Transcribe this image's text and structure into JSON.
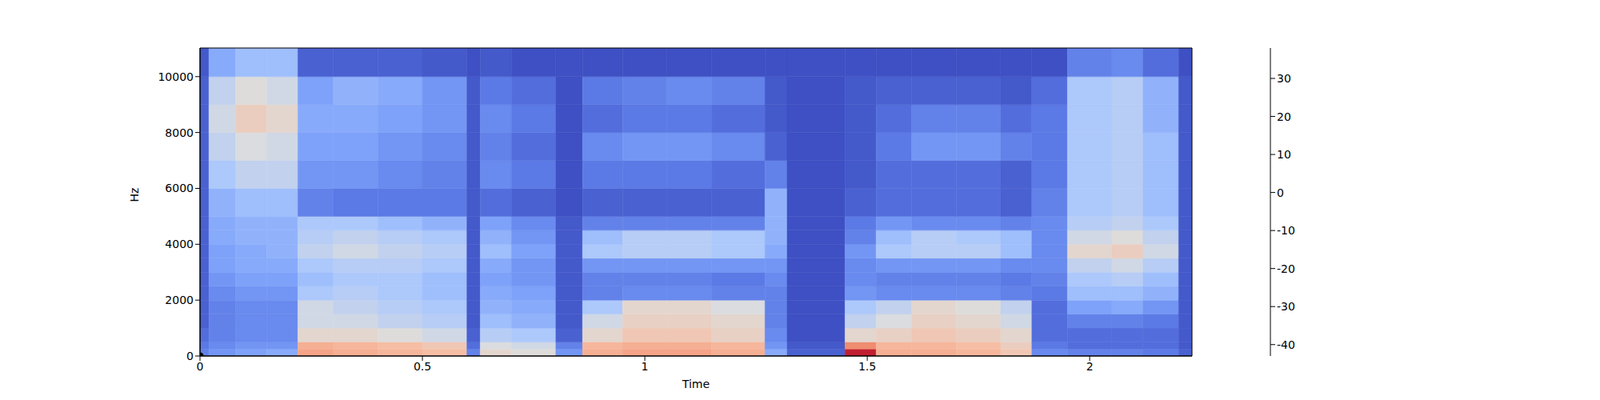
{
  "chart_data": {
    "type": "heatmap",
    "xlabel": "Time",
    "ylabel": "Hz",
    "xlim": [
      0,
      2.23
    ],
    "ylim": [
      0,
      11025
    ],
    "xticks": [
      0,
      0.5,
      1,
      1.5,
      2
    ],
    "yticks": [
      0,
      2000,
      4000,
      6000,
      8000,
      10000
    ],
    "x_edges": [
      0,
      0.02,
      0.08,
      0.15,
      0.22,
      0.3,
      0.4,
      0.5,
      0.6,
      0.63,
      0.7,
      0.8,
      0.86,
      0.95,
      1.05,
      1.15,
      1.27,
      1.32,
      1.45,
      1.52,
      1.6,
      1.7,
      1.8,
      1.87,
      1.95,
      2.05,
      2.12,
      2.2,
      2.23
    ],
    "y_edges": [
      0,
      250,
      500,
      1000,
      1500,
      2000,
      2500,
      3000,
      3500,
      4000,
      4500,
      5000,
      6000,
      7000,
      8000,
      9000,
      10000,
      11025
    ],
    "cells": [
      [
        -30,
        -32,
        -35,
        -38,
        -38,
        -38,
        -38,
        -38,
        -38,
        -38,
        -38,
        -38,
        -38,
        -38,
        -38,
        -38,
        -40
      ],
      [
        -25,
        -28,
        -30,
        -30,
        -30,
        -28,
        -25,
        -22,
        -22,
        -20,
        -20,
        -18,
        -12,
        -8,
        -5,
        -8,
        -20
      ],
      [
        -22,
        -25,
        -28,
        -28,
        -28,
        -25,
        -22,
        -20,
        -20,
        -18,
        -18,
        -15,
        -8,
        -3,
        3,
        -2,
        -15
      ],
      [
        -20,
        -25,
        -28,
        -28,
        -28,
        -25,
        -22,
        -20,
        -18,
        -18,
        -18,
        -15,
        -8,
        -5,
        0,
        -5,
        -15
      ],
      [
        15,
        12,
        0,
        -5,
        -5,
        -12,
        -15,
        -12,
        -8,
        -10,
        -12,
        -30,
        -25,
        -22,
        -20,
        -22,
        -38
      ],
      [
        12,
        10,
        0,
        -5,
        -8,
        -10,
        -12,
        -10,
        -5,
        -8,
        -12,
        -32,
        -25,
        -22,
        -20,
        -18,
        -38
      ],
      [
        10,
        8,
        -2,
        -8,
        -10,
        -12,
        -12,
        -10,
        -8,
        -10,
        -15,
        -32,
        -28,
        -25,
        -22,
        -20,
        -38
      ],
      [
        8,
        5,
        -5,
        -10,
        -12,
        -15,
        -15,
        -12,
        -10,
        -12,
        -18,
        -32,
        -30,
        -28,
        -25,
        -25,
        -40
      ],
      [
        -30,
        -35,
        -38,
        -40,
        -40,
        -40,
        -40,
        -40,
        -40,
        -40,
        -40,
        -40,
        -40,
        -40,
        -40,
        -40,
        -42
      ],
      [
        0,
        -3,
        -10,
        -15,
        -18,
        -20,
        -22,
        -20,
        -15,
        -18,
        -22,
        -35,
        -28,
        -30,
        -28,
        -32,
        -40
      ],
      [
        -2,
        -5,
        -12,
        -18,
        -20,
        -22,
        -25,
        -25,
        -22,
        -25,
        -28,
        -38,
        -32,
        -35,
        -32,
        -35,
        -42
      ],
      [
        -25,
        -30,
        -38,
        -40,
        -40,
        -40,
        -40,
        -40,
        -40,
        -40,
        -40,
        -42,
        -42,
        -42,
        -42,
        -42,
        -42
      ],
      [
        12,
        10,
        0,
        -5,
        -12,
        -30,
        -30,
        -25,
        -12,
        -15,
        -30,
        -38,
        -32,
        -28,
        -35,
        -32,
        -42
      ],
      [
        15,
        12,
        5,
        2,
        0,
        -28,
        -30,
        -25,
        -10,
        -10,
        -30,
        -38,
        -32,
        -25,
        -32,
        -30,
        -42
      ],
      [
        15,
        12,
        5,
        2,
        0,
        -28,
        -30,
        -25,
        -10,
        -10,
        -30,
        -38,
        -32,
        -25,
        -32,
        -28,
        -42
      ],
      [
        12,
        10,
        2,
        0,
        -3,
        -30,
        -32,
        -25,
        -12,
        -12,
        -30,
        -38,
        -35,
        -28,
        -35,
        -30,
        -42
      ],
      [
        -20,
        -25,
        -28,
        -30,
        -30,
        -30,
        -28,
        -25,
        -20,
        -18,
        -18,
        -18,
        -30,
        -38,
        -40,
        -40,
        -42
      ],
      [
        -38,
        -40,
        -42,
        -42,
        -42,
        -42,
        -42,
        -42,
        -42,
        -42,
        -42,
        -42,
        -42,
        -42,
        -42,
        -42,
        -42
      ],
      [
        35,
        20,
        0,
        -8,
        -12,
        -25,
        -28,
        -28,
        -25,
        -30,
        -32,
        -38,
        -40,
        -40,
        -40,
        -40,
        -42
      ],
      [
        12,
        10,
        2,
        -3,
        -8,
        -28,
        -30,
        -25,
        -12,
        -15,
        -25,
        -35,
        -35,
        -32,
        -35,
        -38,
        -42
      ],
      [
        12,
        10,
        5,
        2,
        0,
        -28,
        -30,
        -25,
        -10,
        -10,
        -28,
        -35,
        -35,
        -25,
        -30,
        -38,
        -42
      ],
      [
        10,
        8,
        3,
        0,
        -2,
        -28,
        -30,
        -25,
        -10,
        -12,
        -28,
        -35,
        -35,
        -25,
        -30,
        -38,
        -42
      ],
      [
        5,
        3,
        0,
        -5,
        -8,
        -30,
        -32,
        -28,
        -15,
        -15,
        -30,
        -38,
        -38,
        -30,
        -35,
        -40,
        -42
      ],
      [
        -28,
        -32,
        -35,
        -35,
        -35,
        -32,
        -30,
        -28,
        -28,
        -28,
        -28,
        -30,
        -32,
        -32,
        -32,
        -35,
        -42
      ],
      [
        -30,
        -35,
        -35,
        -30,
        -22,
        -15,
        -12,
        -8,
        0,
        -5,
        -10,
        -12,
        -12,
        -12,
        -12,
        -12,
        -30
      ],
      [
        -30,
        -35,
        -35,
        -30,
        -20,
        -15,
        -10,
        -5,
        3,
        -2,
        -8,
        -10,
        -10,
        -10,
        -10,
        -10,
        -28
      ],
      [
        -32,
        -35,
        -35,
        -32,
        -25,
        -18,
        -15,
        -10,
        -5,
        -8,
        -12,
        -15,
        -15,
        -15,
        -18,
        -18,
        -35
      ],
      [
        -38,
        -40,
        -40,
        -40,
        -40,
        -40,
        -40,
        -40,
        -40,
        -40,
        -40,
        -40,
        -40,
        -40,
        -40,
        -40,
        -42
      ]
    ],
    "colorbar": {
      "range": [
        -43,
        38
      ],
      "ticks": [
        -40,
        -30,
        -20,
        -10,
        0,
        10,
        20,
        30
      ]
    }
  }
}
